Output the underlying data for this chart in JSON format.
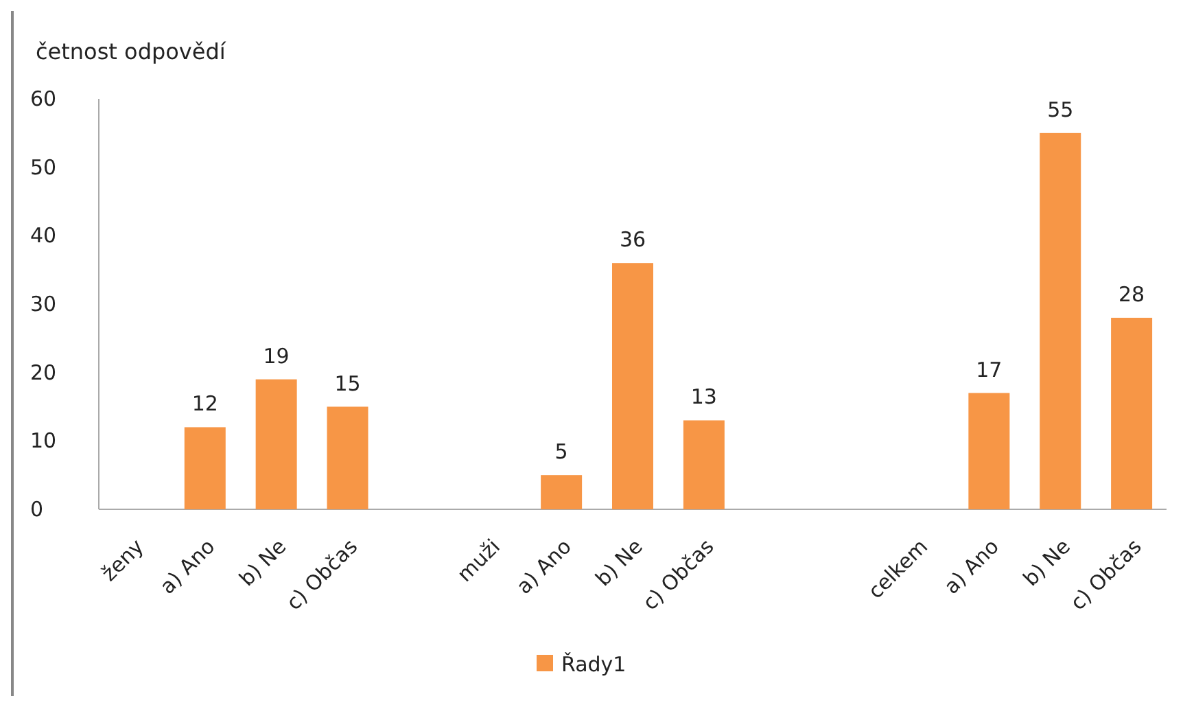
{
  "chart_data": {
    "type": "bar",
    "ylabel": "četnost odpovědí",
    "categories": [
      "ženy",
      "a) Ano",
      "b) Ne",
      "c) Občas",
      null,
      "muži",
      "a) Ano",
      "b) Ne",
      "c) Občas",
      null,
      null,
      "celkem",
      "a) Ano",
      "b) Ne",
      "c) Občas"
    ],
    "series": [
      {
        "name": "Řady1",
        "color": "#f79646",
        "values": [
          null,
          12,
          19,
          15,
          null,
          null,
          5,
          36,
          13,
          null,
          null,
          null,
          17,
          55,
          28
        ]
      }
    ],
    "ylim": [
      0,
      60
    ],
    "yticks": [
      0,
      10,
      20,
      30,
      40,
      50,
      60
    ],
    "data_labels": true,
    "legend": "bottom",
    "grid": false
  }
}
